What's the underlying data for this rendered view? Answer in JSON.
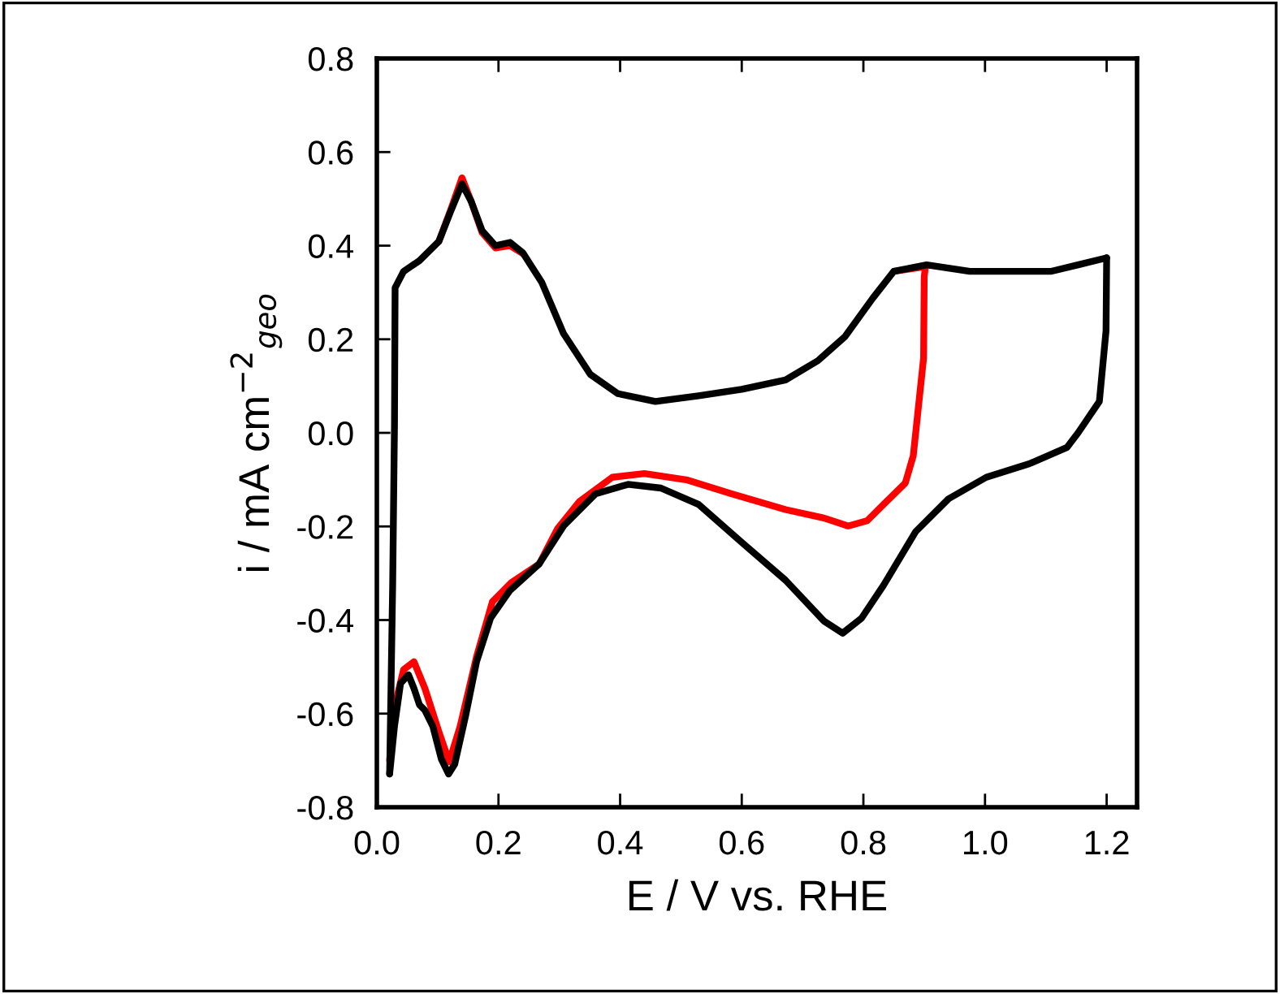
{
  "chart_data": {
    "type": "line",
    "xlabel": "E / V vs. RHE",
    "ylabel": "i / mA cm$^{−2}$$_{geo}$",
    "xlim": [
      0,
      1.25
    ],
    "xticks": [
      {
        "value": 0,
        "label": "0.0"
      },
      0.2,
      0.4,
      0.6,
      0.8,
      {
        "value": 1,
        "label": "1.0"
      },
      1.2
    ],
    "ylim": [
      -0.8,
      0.8
    ],
    "yticks": [
      -0.8,
      -0.6,
      -0.4,
      -0.2,
      {
        "value": 0,
        "label": "0.0"
      },
      0.2,
      0.4,
      0.6,
      0.8
    ],
    "grid": false,
    "legend": false,
    "marker": "none",
    "line_style": "solid",
    "series": [
      {
        "color": "#ff0000",
        "x": [
          0.102,
          0.121,
          0.14,
          0.155,
          0.173,
          0.195,
          0.219,
          0.24,
          0.271,
          0.307,
          0.351,
          0.396,
          0.458,
          0.529,
          0.6,
          0.672,
          0.725,
          0.77,
          0.815,
          0.85,
          0.902
        ],
        "values": [
          0.409,
          0.475,
          0.545,
          0.495,
          0.428,
          0.395,
          0.4,
          0.383,
          null,
          null,
          null,
          null,
          null,
          null,
          null,
          null,
          null,
          null,
          null,
          0.345,
          0.355
        ]
      },
      {
        "color": "#ff0000",
        "x": [
          0.902,
          0.9,
          0.899,
          0.886,
          0.882,
          0.869,
          0.833,
          0.806,
          0.775,
          0.735,
          0.672,
          0.583,
          0.511,
          0.44,
          0.387,
          0.333,
          0.297,
          0.267,
          0.221,
          0.19,
          0.164,
          0.137,
          0.119,
          0.102,
          0.079,
          0.061,
          0.044,
          0.03,
          0.021
        ],
        "values": [
          0.355,
          0.333,
          0.16,
          0.0,
          -0.049,
          -0.107,
          -0.153,
          -0.188,
          -0.199,
          -0.182,
          -0.164,
          -0.13,
          -0.101,
          -0.087,
          -0.095,
          -0.147,
          -0.205,
          -0.28,
          -0.32,
          -0.361,
          -0.478,
          -0.627,
          -0.703,
          -0.639,
          -0.546,
          -0.489,
          -0.506,
          -0.581,
          -0.7
        ]
      },
      {
        "color": "#000000",
        "x": [
          0.021,
          0.026,
          0.029,
          0.03,
          0.044,
          0.07,
          0.102,
          0.121,
          0.14,
          0.155,
          0.173,
          0.195,
          0.219,
          0.24,
          0.271,
          0.307,
          0.351,
          0.396,
          0.458,
          0.529,
          0.6,
          0.672,
          0.725,
          0.77,
          0.815,
          0.85,
          0.904,
          0.975,
          1.046,
          1.108,
          1.153,
          1.2
        ],
        "values": [
          -0.729,
          -0.326,
          0.02,
          0.31,
          0.345,
          0.368,
          0.409,
          0.472,
          0.532,
          0.495,
          0.432,
          0.4,
          0.407,
          0.385,
          0.322,
          0.212,
          0.125,
          0.084,
          0.067,
          0.079,
          0.093,
          0.113,
          0.154,
          0.206,
          0.287,
          0.345,
          0.359,
          0.345,
          0.345,
          0.345,
          0.359,
          0.374
        ]
      },
      {
        "color": "#000000",
        "x": [
          1.2,
          1.199,
          1.188,
          1.153,
          1.135,
          1.073,
          1.002,
          0.94,
          0.886,
          0.833,
          0.797,
          0.766,
          0.735,
          0.672,
          0.6,
          0.529,
          0.467,
          0.413,
          0.36,
          0.307,
          0.267,
          0.218,
          0.187,
          0.164,
          0.146,
          0.128,
          0.118,
          0.106,
          0.092,
          0.079,
          0.07,
          0.061,
          0.052,
          0.039,
          0.029,
          0.021
        ],
        "values": [
          0.374,
          0.218,
          0.067,
          0.0,
          -0.031,
          -0.066,
          -0.095,
          -0.141,
          -0.211,
          -0.326,
          -0.396,
          -0.428,
          -0.402,
          -0.315,
          -0.234,
          -0.153,
          -0.118,
          -0.11,
          -0.13,
          -0.199,
          -0.28,
          -0.338,
          -0.396,
          -0.489,
          -0.604,
          -0.708,
          -0.729,
          -0.697,
          -0.627,
          -0.593,
          -0.581,
          -0.546,
          -0.517,
          -0.535,
          -0.627,
          -0.729
        ]
      }
    ]
  }
}
